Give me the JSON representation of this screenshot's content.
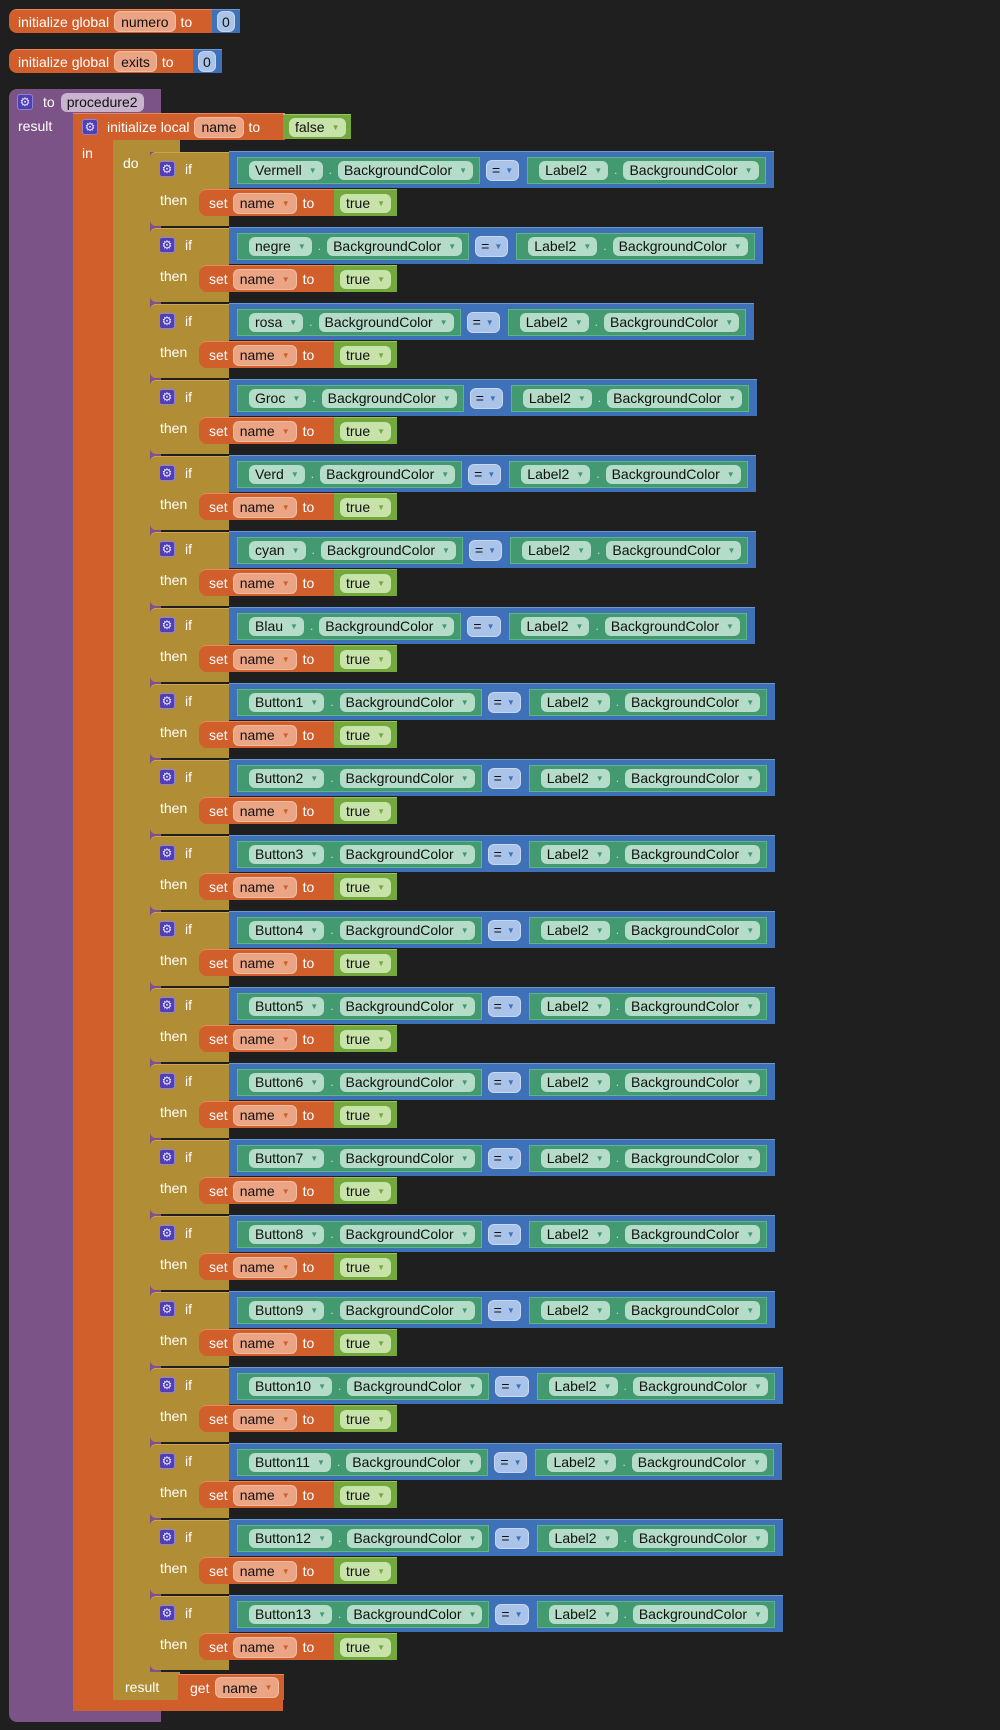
{
  "globals": [
    {
      "keyword": "initialize global",
      "name": "numero",
      "to": "to",
      "value": "0"
    },
    {
      "keyword": "initialize global",
      "name": "exits",
      "to": "to",
      "value": "0"
    }
  ],
  "procedure": {
    "to": "to",
    "name": "procedure2",
    "result_label": "result",
    "local": {
      "keyword": "initialize local",
      "name": "name",
      "to": "to",
      "value": "false",
      "in_label": "in"
    },
    "do_label": "do",
    "inner_result_label": "result",
    "get": {
      "keyword": "get",
      "name": "name"
    }
  },
  "if_blocks": {
    "if_label": "if",
    "then_label": "then",
    "property": "BackgroundColor",
    "operator": "=",
    "compare_component": "Label2",
    "set_keyword": "set",
    "set_var": "name",
    "set_to": "to",
    "set_value": "true",
    "components": [
      "Vermell",
      "negre",
      "rosa",
      "Groc",
      "Verd",
      "cyan",
      "Blau",
      "Button1",
      "Button2",
      "Button3",
      "Button4",
      "Button5",
      "Button6",
      "Button7",
      "Button8",
      "Button9",
      "Button10",
      "Button11",
      "Button12",
      "Button13"
    ]
  },
  "colors": {
    "background": "#1f1f1f",
    "procedure": "#7c5386",
    "variables": "#d15f2c",
    "control": "#b18e35",
    "math": "#3f71b8",
    "component": "#439a70",
    "logic": "#74a83d"
  },
  "icons": {
    "mutator": "gear-icon",
    "dropdown": "triangle-down-icon"
  }
}
